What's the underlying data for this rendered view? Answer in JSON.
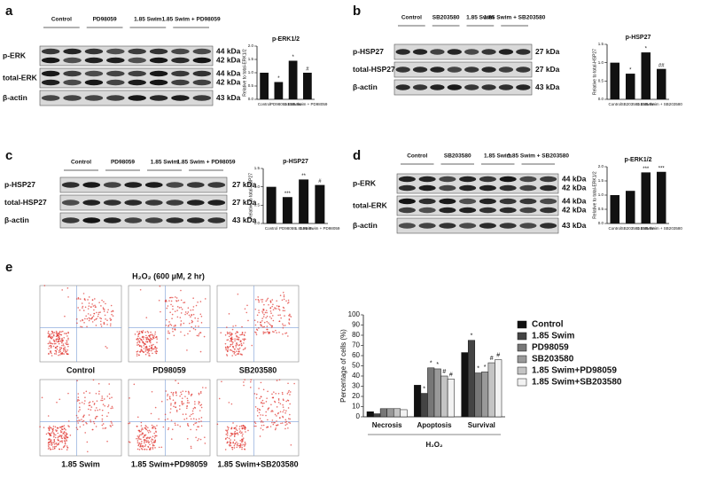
{
  "figure": {
    "panels": [
      {
        "label": "a",
        "lanes": [
          "Control",
          "PD98059",
          "1.85 Swim",
          "1.85 Swim + PD98059"
        ],
        "rows": [
          {
            "name": "p-ERK",
            "sizes": [
              "44 kDa",
              "42 kDa"
            ]
          },
          {
            "name": "total-ERK",
            "sizes": [
              "44 kDa",
              "42 kDa"
            ]
          },
          {
            "name": "β-actin",
            "sizes": [
              "43 kDa"
            ]
          }
        ]
      },
      {
        "label": "b",
        "lanes": [
          "Control",
          "SB203580",
          "1.85 Swim",
          "1.85 Swim + SB203580"
        ],
        "rows": [
          {
            "name": "p-HSP27",
            "sizes": [
              "27 kDa"
            ]
          },
          {
            "name": "total-HSP27",
            "sizes": [
              "27 kDa"
            ]
          },
          {
            "name": "β-actin",
            "sizes": [
              "43 kDa"
            ]
          }
        ]
      },
      {
        "label": "c",
        "lanes": [
          "Control",
          "PD98059",
          "1.85 Swim",
          "1.85 Swim + PD98059"
        ],
        "rows": [
          {
            "name": "p-HSP27",
            "sizes": [
              "27 kDa"
            ]
          },
          {
            "name": "total-HSP27",
            "sizes": [
              "27 kDa"
            ]
          },
          {
            "name": "β-actin",
            "sizes": [
              "43 kDa"
            ]
          }
        ]
      },
      {
        "label": "d",
        "lanes": [
          "Control",
          "SB203580",
          "1.85 Swim",
          "1.85 Swim + SB203580"
        ],
        "rows": [
          {
            "name": "p-ERK",
            "sizes": [
              "44 kDa",
              "42 kDa"
            ]
          },
          {
            "name": "total-ERK",
            "sizes": [
              "44 kDa",
              "42 kDa"
            ]
          },
          {
            "name": "β-actin",
            "sizes": [
              "43 kDa"
            ]
          }
        ]
      }
    ],
    "flow": {
      "label": "e",
      "title": "H₂O₂ (600 µM, 2 hr)",
      "plots": [
        "Control",
        "PD98059",
        "SB203580",
        "1.85 Swim",
        "1.85 Swim+PD98059",
        "1.85 Swim+SB203580"
      ]
    }
  },
  "chart_data": [
    {
      "type": "bar",
      "title": "p-ERK1/2",
      "y_label": "Relative to total-ERK1/2",
      "categories": [
        "Control",
        "PD98059",
        "1.85Swim",
        "1.85 Swim + PD98059"
      ],
      "values": [
        1.0,
        0.65,
        1.45,
        1.0
      ],
      "markers": [
        null,
        "*",
        "*",
        "#"
      ],
      "color": "#111111",
      "ylim": [
        0,
        2
      ],
      "yticks": [
        {
          "value": 0,
          "label": "0.0"
        },
        {
          "value": 0.5,
          "label": "0.5"
        },
        {
          "value": 1,
          "label": "1.0"
        },
        {
          "value": 1.5,
          "label": "1.5"
        },
        {
          "value": 2,
          "label": "2.0"
        }
      ]
    },
    {
      "type": "bar",
      "title": "p-HSP27",
      "y_label": "Relative to total-HSP27",
      "categories": [
        "Control",
        "SB203580",
        "1.85Swim",
        "1.85 Swim + SB203580"
      ],
      "values": [
        1.0,
        0.7,
        1.28,
        0.83
      ],
      "markers": [
        null,
        "*",
        "*",
        "##"
      ],
      "color": "#111111",
      "ylim": [
        0,
        1.5
      ],
      "yticks": [
        {
          "value": 0,
          "label": "0.0"
        },
        {
          "value": 0.5,
          "label": "0.5"
        },
        {
          "value": 1,
          "label": "1.0"
        },
        {
          "value": 1.5,
          "label": "1.5"
        }
      ]
    },
    {
      "type": "bar",
      "title": "p-HSP27",
      "y_label": "Relative to total-HSP27",
      "categories": [
        "Control",
        "PD98059",
        "1.85Swim",
        "1.85 Swim + PD98059"
      ],
      "values": [
        1.0,
        0.72,
        1.2,
        1.05
      ],
      "markers": [
        null,
        "***",
        "**",
        "#"
      ],
      "color": "#111111",
      "ylim": [
        0,
        1.5
      ],
      "yticks": [
        {
          "value": 0,
          "label": "0.0"
        },
        {
          "value": 0.5,
          "label": "0.5"
        },
        {
          "value": 1,
          "label": "1.0"
        },
        {
          "value": 1.5,
          "label": "1.5"
        }
      ]
    },
    {
      "type": "bar",
      "title": "p-ERK1/2",
      "y_label": "Relative to total-ERK1/2",
      "categories": [
        "Control",
        "SB203580",
        "1.85Swim",
        "1.85 Swim + SB203580"
      ],
      "values": [
        1.0,
        1.15,
        1.8,
        1.82
      ],
      "markers": [
        null,
        null,
        "***",
        "***"
      ],
      "color": "#111111",
      "ylim": [
        0,
        2
      ],
      "yticks": [
        {
          "value": 0,
          "label": "0.0"
        },
        {
          "value": 0.5,
          "label": "0.5"
        },
        {
          "value": 1,
          "label": "1.0"
        },
        {
          "value": 1.5,
          "label": "1.5"
        },
        {
          "value": 2,
          "label": "2.0"
        }
      ]
    },
    {
      "type": "bar",
      "y_label": "Percentage of cells (%)",
      "x_label": "H₂O₂",
      "categories": [
        "Necrosis",
        "Apoptosis",
        "Survival"
      ],
      "series": [
        {
          "name": "Control",
          "color": "#111111",
          "values": [
            5,
            31,
            63
          ],
          "markers": [
            null,
            null,
            null
          ]
        },
        {
          "name": "1.85 Swim",
          "color": "#444444",
          "values": [
            3,
            23,
            75
          ],
          "markers": [
            null,
            "*",
            "*"
          ]
        },
        {
          "name": "PD98059",
          "color": "#777777",
          "values": [
            8,
            48,
            43
          ],
          "markers": [
            null,
            "*",
            "*"
          ]
        },
        {
          "name": "SB203580",
          "color": "#999999",
          "values": [
            8,
            47,
            44
          ],
          "markers": [
            null,
            "*",
            "*"
          ]
        },
        {
          "name": "1.85 Swim+PD98059",
          "color": "#c4c4c4",
          "values": [
            8,
            40,
            53
          ],
          "markers": [
            null,
            "#",
            "#"
          ]
        },
        {
          "name": "1.85 Swim+SB203580",
          "color": "#f2f2f2",
          "values": [
            7,
            37,
            56
          ],
          "markers": [
            null,
            "#",
            "#"
          ]
        }
      ],
      "ylim": [
        0,
        100
      ],
      "yticks": [
        0,
        10,
        20,
        30,
        40,
        50,
        60,
        70,
        80,
        90,
        100
      ],
      "legend": "right"
    }
  ]
}
